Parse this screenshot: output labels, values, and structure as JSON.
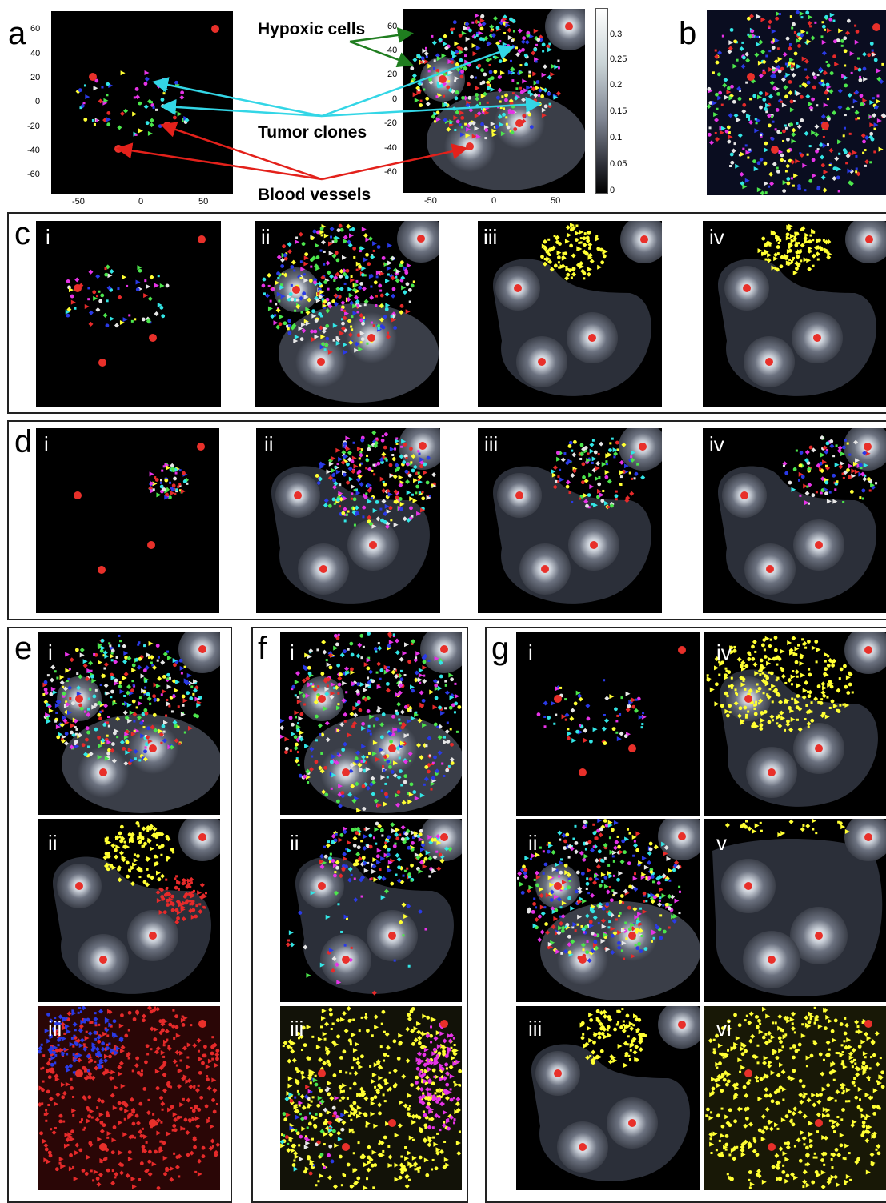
{
  "panel_letters": {
    "a": "a",
    "b": "b",
    "c": "c",
    "d": "d",
    "e": "e",
    "f": "f",
    "g": "g"
  },
  "roman": {
    "i": "i",
    "ii": "ii",
    "iii": "iii",
    "iv": "iv",
    "v": "v",
    "vi": "vi"
  },
  "annotations": {
    "hypoxic": "Hypoxic  cells",
    "tumor": "Tumor clones",
    "vessels": "Blood vessels"
  },
  "axis_ticks": {
    "left_y": [
      "60",
      "40",
      "20",
      "0",
      "-20",
      "-40",
      "-60"
    ],
    "left_x": [
      "-50",
      "0",
      "50"
    ],
    "right_y": [
      "60",
      "40",
      "20",
      "0",
      "-20",
      "-40",
      "-60"
    ],
    "right_x": [
      "-50",
      "0",
      "50"
    ],
    "colorbar": [
      "0.3",
      "0.25",
      "0.2",
      "0.15",
      "0.1",
      "0.05",
      "0"
    ]
  },
  "colors": {
    "vessel": "#e8302a",
    "arrow_green": "#1f7d1f",
    "arrow_cyan": "#33d6e6",
    "arrow_red": "#e3211b",
    "clones": [
      "#ffff33",
      "#33e6e6",
      "#e633e6",
      "#e62a2a",
      "#2a3ae6",
      "#4ce64c",
      "#e6e6e6"
    ]
  }
}
